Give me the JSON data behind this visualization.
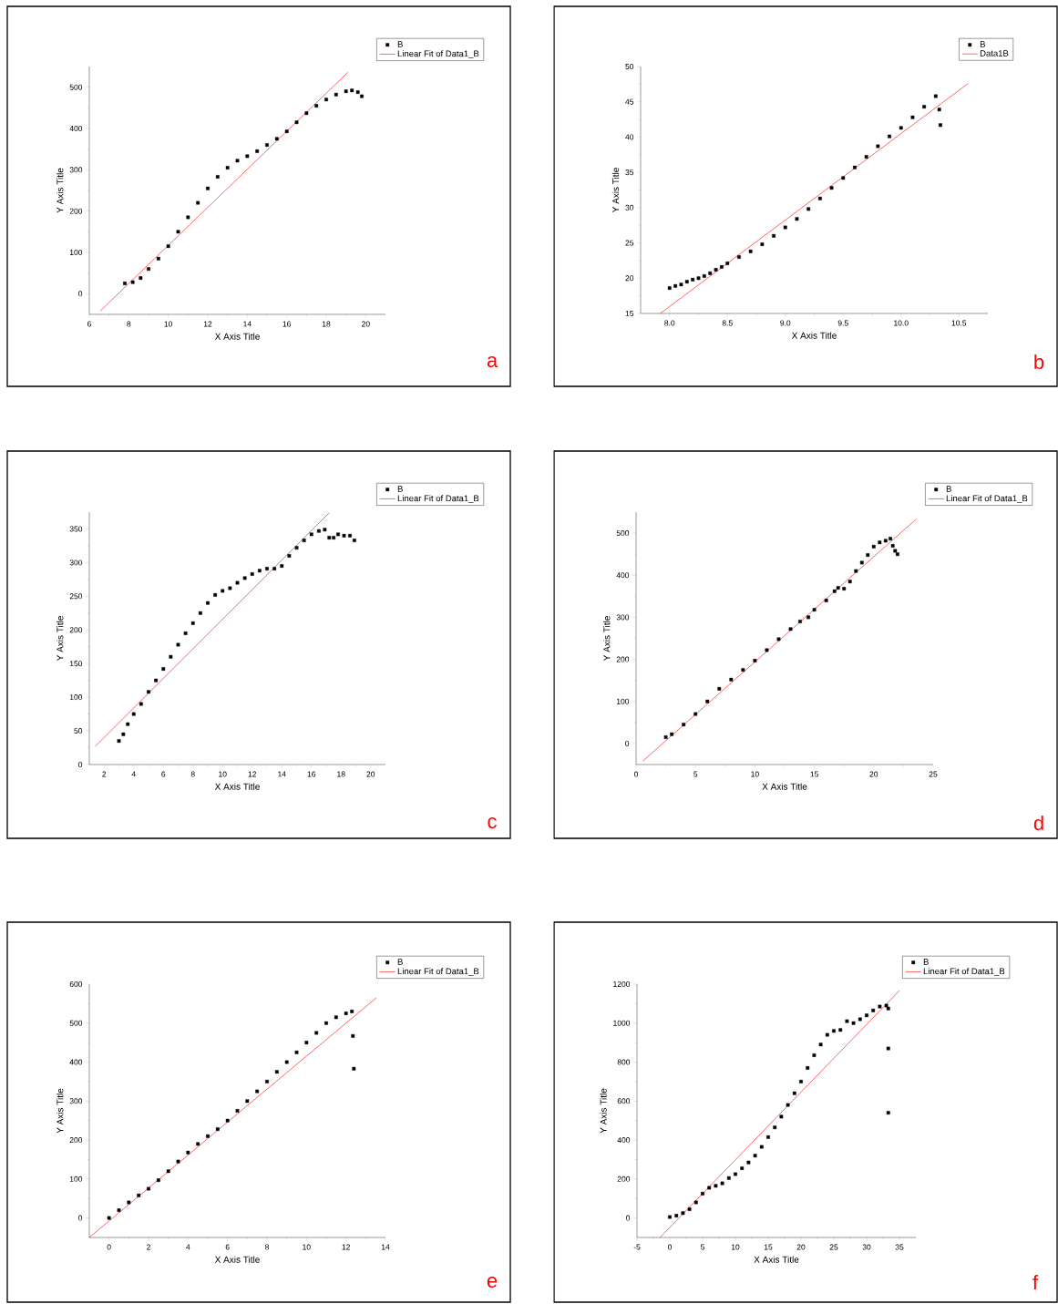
{
  "chart_data": [
    {
      "type": "scatter",
      "xlabel": "X Axis Title",
      "ylabel": "Y Axis Title",
      "xlim": [
        6,
        21
      ],
      "ylim": [
        -50,
        550
      ],
      "xticks": [
        6,
        8,
        10,
        12,
        14,
        16,
        18,
        20
      ],
      "yticks": [
        0,
        100,
        200,
        300,
        400,
        500
      ],
      "legend": "top right",
      "annotations": [
        "a"
      ],
      "series": [
        {
          "name": "B",
          "color": "#000000",
          "marker": "square",
          "x": [
            7.8,
            8.2,
            8.6,
            9,
            9.5,
            10,
            10.5,
            11,
            11.5,
            12,
            12.5,
            13,
            13.5,
            14,
            14.5,
            15,
            15.5,
            16,
            16.5,
            17,
            17.5,
            18,
            18.5,
            19,
            19.3,
            19.6,
            19.8
          ],
          "values": [
            25,
            28,
            38,
            60,
            85,
            115,
            150,
            185,
            220,
            255,
            283,
            305,
            322,
            333,
            345,
            360,
            375,
            393,
            415,
            437,
            455,
            470,
            482,
            490,
            492,
            488,
            478
          ]
        },
        {
          "name": "Linear Fit of Data1_B",
          "type": "line",
          "color": "#ff0000",
          "x": [
            6.55,
            19.1
          ],
          "values": [
            -42,
            536
          ]
        }
      ]
    },
    {
      "type": "scatter",
      "xlabel": "X Axis Title",
      "ylabel": "Y Axis Title",
      "xlim": [
        7.75,
        10.75
      ],
      "ylim": [
        15,
        50
      ],
      "xticks": [
        {
          "value": 8,
          "label": "8.0"
        },
        {
          "value": 8.5,
          "label": "8.5"
        },
        {
          "value": 9,
          "label": "9.0"
        },
        {
          "value": 9.5,
          "label": "9.5"
        },
        {
          "value": 10,
          "label": "10.0"
        },
        {
          "value": 10.5,
          "label": "10.5"
        }
      ],
      "yticks": [
        15,
        20,
        25,
        30,
        35,
        40,
        45,
        50
      ],
      "legend": "top right",
      "annotations": [
        "b"
      ],
      "series": [
        {
          "name": "B",
          "color": "#000000",
          "marker": "square",
          "x": [
            8.0,
            8.05,
            8.1,
            8.15,
            8.2,
            8.25,
            8.3,
            8.35,
            8.4,
            8.45,
            8.5,
            8.6,
            8.7,
            8.8,
            8.9,
            9.0,
            9.1,
            9.2,
            9.3,
            9.4,
            9.5,
            9.6,
            9.7,
            9.8,
            9.9,
            10.0,
            10.1,
            10.2,
            10.3,
            10.33,
            10.34
          ],
          "values": [
            18.6,
            18.9,
            19.1,
            19.5,
            19.8,
            20.0,
            20.3,
            20.7,
            21.2,
            21.6,
            22.1,
            23.0,
            23.8,
            24.8,
            26.0,
            27.2,
            28.4,
            29.8,
            31.3,
            32.8,
            34.2,
            35.7,
            37.2,
            38.7,
            40.1,
            41.3,
            42.8,
            44.3,
            45.8,
            43.9,
            41.7
          ]
        },
        {
          "name": "Data1B",
          "type": "line",
          "color": "#ff0000",
          "x": [
            7.92,
            10.58
          ],
          "values": [
            15,
            47.6
          ]
        }
      ]
    },
    {
      "type": "scatter",
      "xlabel": "X Axis Title",
      "ylabel": "Y Axis Title",
      "xlim": [
        1,
        21
      ],
      "ylim": [
        0,
        375
      ],
      "xticks": [
        2,
        4,
        6,
        8,
        10,
        12,
        14,
        16,
        18,
        20
      ],
      "yticks": [
        0,
        50,
        100,
        150,
        200,
        250,
        300,
        350
      ],
      "legend": "top right",
      "annotations": [
        "c"
      ],
      "series": [
        {
          "name": "B",
          "color": "#000000",
          "marker": "square",
          "x": [
            3,
            3.3,
            3.6,
            4,
            4.5,
            5,
            5.5,
            6,
            6.5,
            7,
            7.5,
            8,
            8.5,
            9,
            9.5,
            10,
            10.5,
            11,
            11.5,
            12,
            12.5,
            13,
            13.5,
            14,
            14.5,
            15,
            15.5,
            16,
            16.5,
            16.9,
            17.2,
            17.5,
            17.8,
            18.2,
            18.6,
            18.9
          ],
          "values": [
            35,
            45,
            60,
            75,
            90,
            108,
            125,
            142,
            160,
            178,
            195,
            210,
            225,
            240,
            252,
            258,
            262,
            270,
            277,
            283,
            288,
            291,
            291,
            295,
            310,
            322,
            333,
            342,
            347,
            349,
            337,
            337,
            342,
            340,
            340,
            333
          ]
        },
        {
          "name": "Linear Fit of Data1_B",
          "type": "line",
          "color": "#ff0000",
          "x": [
            1.4,
            17.2
          ],
          "values": [
            27,
            374
          ]
        }
      ]
    },
    {
      "type": "scatter",
      "xlabel": "X Axis Title",
      "ylabel": "Y Axis Title",
      "xlim": [
        0,
        25
      ],
      "ylim": [
        -50,
        550
      ],
      "xticks": [
        0,
        5,
        10,
        15,
        20,
        25
      ],
      "yticks": [
        0,
        100,
        200,
        300,
        400,
        500
      ],
      "legend": "top right",
      "annotations": [
        "d"
      ],
      "series": [
        {
          "name": "B",
          "color": "#000000",
          "marker": "square",
          "x": [
            2.5,
            3,
            4,
            5,
            6,
            7,
            8,
            9,
            10,
            11,
            12,
            13,
            13.8,
            14.5,
            15,
            16,
            16.7,
            17,
            17.5,
            18,
            18.5,
            19,
            19.5,
            20,
            20.5,
            21,
            21.4,
            21.6,
            21.8,
            22
          ],
          "values": [
            15,
            22,
            45,
            70,
            100,
            130,
            152,
            175,
            197,
            222,
            248,
            272,
            290,
            300,
            318,
            340,
            362,
            370,
            368,
            385,
            410,
            430,
            448,
            468,
            478,
            482,
            487,
            470,
            458,
            450
          ]
        },
        {
          "name": "Linear Fit of Data1_B",
          "type": "line",
          "color": "#ff0000",
          "x": [
            0.56,
            23.6
          ],
          "values": [
            -42,
            534
          ]
        }
      ]
    },
    {
      "type": "scatter",
      "xlabel": "X Axis Title",
      "ylabel": "Y Axis Title",
      "xlim": [
        -1,
        14
      ],
      "ylim": [
        -50,
        600
      ],
      "xticks": [
        0,
        2,
        4,
        6,
        8,
        10,
        12,
        14
      ],
      "yticks": [
        0,
        100,
        200,
        300,
        400,
        500,
        600
      ],
      "legend": "top right",
      "annotations": [
        "e"
      ],
      "series": [
        {
          "name": "B",
          "color": "#000000",
          "marker": "square",
          "x": [
            0,
            0.5,
            1,
            1.5,
            2,
            2.5,
            3,
            3.5,
            4,
            4.5,
            5,
            5.5,
            6,
            6.5,
            7,
            7.5,
            8,
            8.5,
            9,
            9.5,
            10,
            10.5,
            11,
            11.5,
            12,
            12.3,
            12.35,
            12.4
          ],
          "values": [
            0,
            20,
            40,
            58,
            75,
            97,
            120,
            145,
            168,
            190,
            210,
            228,
            250,
            275,
            300,
            325,
            350,
            375,
            400,
            425,
            450,
            475,
            500,
            515,
            525,
            530,
            467,
            383
          ]
        },
        {
          "name": "Linear Fit of Data1_B",
          "type": "line",
          "color": "#ff0000",
          "x": [
            -1,
            13.54
          ],
          "values": [
            -50,
            565
          ]
        }
      ]
    },
    {
      "type": "scatter",
      "xlabel": "X Axis Title",
      "ylabel": "Y Axis Title",
      "xlim": [
        -5,
        37.5
      ],
      "ylim": [
        -100,
        1200
      ],
      "xticks": [
        -5,
        0,
        5,
        10,
        15,
        20,
        25,
        30,
        35
      ],
      "yticks": [
        0,
        200,
        400,
        600,
        800,
        1000,
        1200
      ],
      "legend": "top right",
      "annotations": [
        "f"
      ],
      "series": [
        {
          "name": "B",
          "color": "#000000",
          "marker": "square",
          "x": [
            0,
            1,
            2,
            3,
            4,
            5,
            6,
            7,
            8,
            9,
            10,
            11,
            12,
            13,
            14,
            15,
            16,
            17,
            18,
            19,
            20,
            21,
            22,
            23,
            24,
            25,
            26,
            27,
            28,
            29,
            30,
            31,
            32,
            33,
            33.3,
            33.3,
            33.3
          ],
          "values": [
            5,
            12,
            25,
            45,
            80,
            125,
            155,
            165,
            178,
            205,
            225,
            255,
            285,
            320,
            365,
            415,
            465,
            520,
            580,
            640,
            700,
            770,
            835,
            890,
            940,
            960,
            965,
            1010,
            1000,
            1020,
            1040,
            1065,
            1085,
            1090,
            1075,
            870,
            540
          ]
        },
        {
          "name": "Linear Fit of Data1_B",
          "type": "line",
          "color": "#ff0000",
          "x": [
            -1.48,
            35.0
          ],
          "values": [
            -100,
            1167
          ]
        }
      ]
    }
  ]
}
